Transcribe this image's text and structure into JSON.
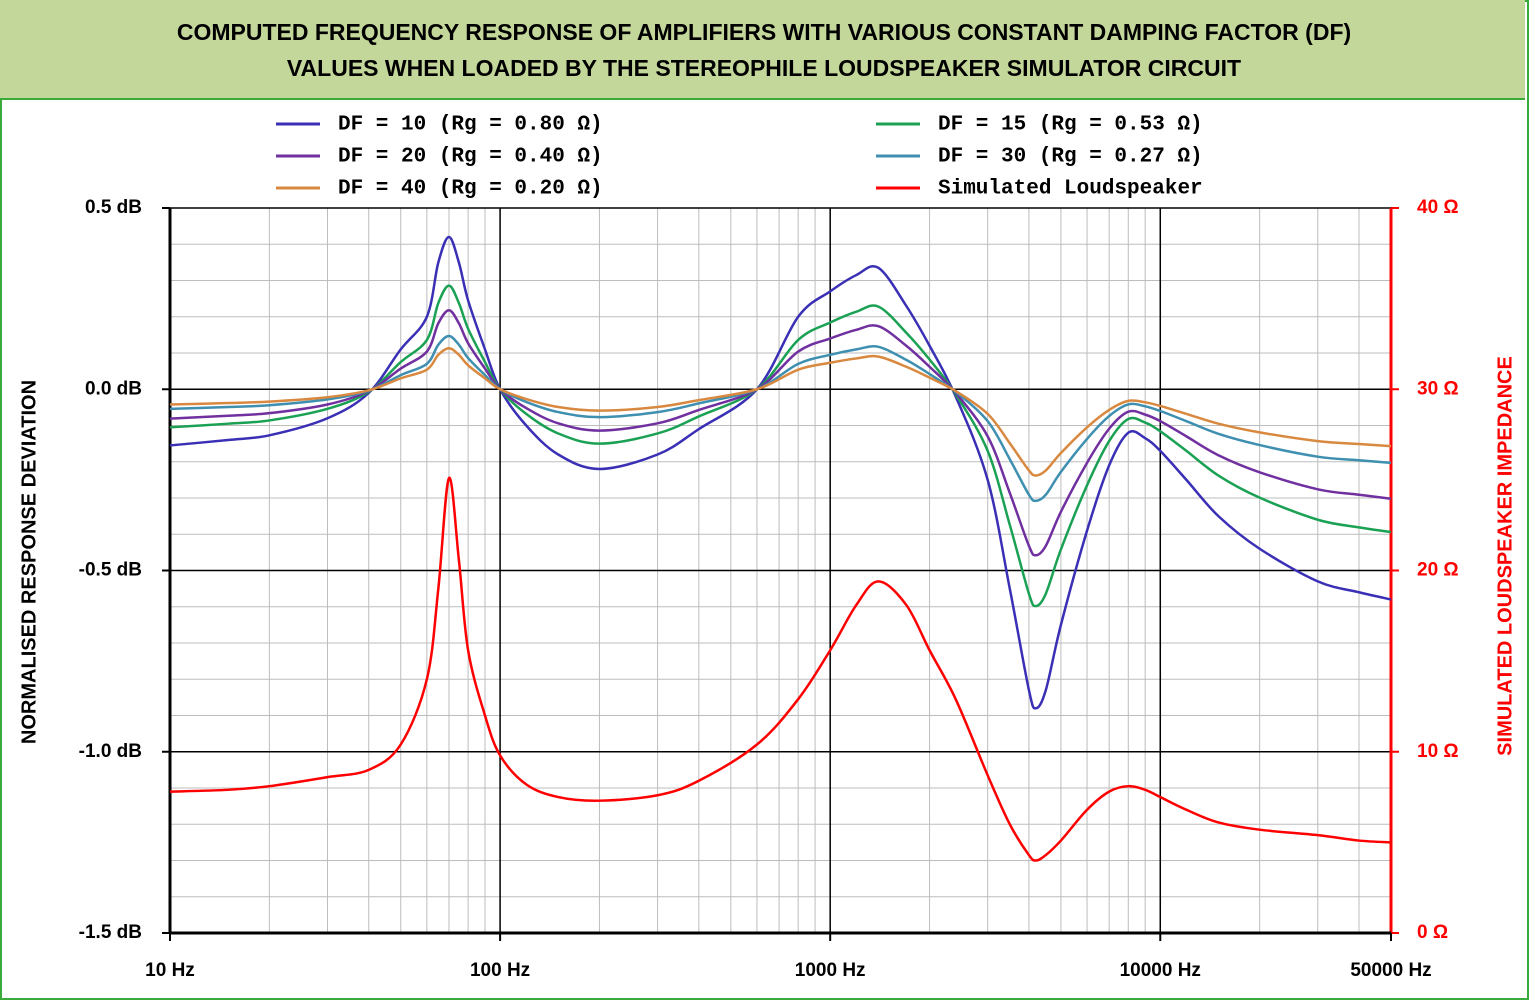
{
  "chart_data": {
    "type": "line",
    "title": [
      "COMPUTED FREQUENCY RESPONSE OF AMPLIFIERS WITH VARIOUS CONSTANT DAMPING FACTOR (DF)",
      "VALUES WHEN LOADED BY THE STEREOPHILE LOUDSPEAKER SIMULATOR CIRCUIT"
    ],
    "y_label": "NORMALISED RESPONSE DEVIATION",
    "y2_label": "SIMULATED LOUDSPEAKER IMPEDANCE",
    "log_x": true,
    "grid": true,
    "minor_grid": true,
    "legend": "top",
    "xlim": [
      10,
      50000
    ],
    "xticks": [
      {
        "value": 10,
        "label": "10 Hz"
      },
      {
        "value": 100,
        "label": "100 Hz"
      },
      {
        "value": 1000,
        "label": "1000 Hz"
      },
      {
        "value": 10000,
        "label": "10000 Hz"
      },
      {
        "value": 50000,
        "label": "50000 Hz"
      }
    ],
    "ylim": [
      -1.5,
      0.5
    ],
    "yticks": [
      {
        "value": 0.5,
        "label": "0.5 dB"
      },
      {
        "value": 0,
        "label": "0.0 dB"
      },
      {
        "value": -0.5,
        "label": "-0.5 dB"
      },
      {
        "value": -1,
        "label": "-1.0 dB"
      },
      {
        "value": -1.5,
        "label": "-1.5 dB"
      }
    ],
    "y2lim": [
      0,
      40
    ],
    "y2ticks": [
      {
        "value": 40,
        "label": "40 Ω"
      },
      {
        "value": 30,
        "label": "30 Ω"
      },
      {
        "value": 20,
        "label": "20 Ω"
      },
      {
        "value": 10,
        "label": "10 Ω"
      },
      {
        "value": 0,
        "label": "0 Ω"
      }
    ],
    "x": [
      10,
      15,
      20,
      30,
      40,
      50,
      60,
      65,
      70,
      75,
      80,
      90,
      100,
      120,
      150,
      200,
      300,
      400,
      600,
      800,
      1000,
      1200,
      1400,
      1700,
      2000,
      2400,
      3000,
      3500,
      4000,
      4200,
      4500,
      5000,
      6000,
      7000,
      8000,
      9000,
      10000,
      12000,
      15000,
      20000,
      30000,
      40000,
      50000
    ],
    "series": [
      {
        "name": "DF = 10 (Rg = 0.80 Ω)",
        "color": "#3a2fb5",
        "values": [
          -0.155,
          -0.14,
          -0.127,
          -0.08,
          -0.01,
          0.11,
          0.2,
          0.35,
          0.42,
          0.35,
          0.245,
          0.11,
          0,
          -0.1,
          -0.18,
          -0.22,
          -0.18,
          -0.11,
          0,
          0.2,
          0.27,
          0.315,
          0.335,
          0.23,
          0.12,
          -0.02,
          -0.25,
          -0.55,
          -0.83,
          -0.88,
          -0.83,
          -0.65,
          -0.39,
          -0.21,
          -0.12,
          -0.135,
          -0.17,
          -0.25,
          -0.35,
          -0.44,
          -0.53,
          -0.56,
          -0.58
        ]
      },
      {
        "name": "DF = 15 (Rg = 0.53 Ω)",
        "color": "#1ba154",
        "values": [
          -0.105,
          -0.095,
          -0.086,
          -0.054,
          -0.007,
          0.075,
          0.136,
          0.238,
          0.286,
          0.238,
          0.167,
          0.075,
          0,
          -0.068,
          -0.122,
          -0.15,
          -0.122,
          -0.075,
          0,
          0.136,
          0.184,
          0.214,
          0.228,
          0.156,
          0.082,
          -0.014,
          -0.17,
          -0.374,
          -0.564,
          -0.598,
          -0.564,
          -0.442,
          -0.265,
          -0.143,
          -0.082,
          -0.092,
          -0.116,
          -0.17,
          -0.238,
          -0.299,
          -0.36,
          -0.381,
          -0.394
        ]
      },
      {
        "name": "DF = 20 (Rg = 0.40 Ω)",
        "color": "#7030a0",
        "values": [
          -0.081,
          -0.073,
          -0.066,
          -0.042,
          -0.005,
          0.057,
          0.104,
          0.182,
          0.218,
          0.182,
          0.127,
          0.057,
          0,
          -0.052,
          -0.094,
          -0.114,
          -0.094,
          -0.057,
          0,
          0.104,
          0.14,
          0.164,
          0.174,
          0.12,
          0.062,
          -0.01,
          -0.13,
          -0.286,
          -0.432,
          -0.458,
          -0.432,
          -0.338,
          -0.203,
          -0.109,
          -0.062,
          -0.07,
          -0.088,
          -0.13,
          -0.182,
          -0.229,
          -0.276,
          -0.291,
          -0.302
        ]
      },
      {
        "name": "DF = 30 (Rg = 0.27 Ω)",
        "color": "#3e8fb0",
        "values": [
          -0.054,
          -0.049,
          -0.044,
          -0.028,
          -0.004,
          0.039,
          0.07,
          0.123,
          0.147,
          0.123,
          0.086,
          0.039,
          0,
          -0.035,
          -0.063,
          -0.077,
          -0.063,
          -0.039,
          0,
          0.07,
          0.095,
          0.11,
          0.117,
          0.081,
          0.042,
          -0.007,
          -0.088,
          -0.193,
          -0.291,
          -0.308,
          -0.291,
          -0.228,
          -0.137,
          -0.074,
          -0.042,
          -0.047,
          -0.06,
          -0.088,
          -0.123,
          -0.154,
          -0.186,
          -0.196,
          -0.203
        ]
      },
      {
        "name": "DF = 40 (Rg = 0.20 Ω)",
        "color": "#d9893f",
        "values": [
          -0.042,
          -0.038,
          -0.034,
          -0.022,
          -0.003,
          0.03,
          0.054,
          0.095,
          0.113,
          0.095,
          0.066,
          0.03,
          0,
          -0.027,
          -0.049,
          -0.059,
          -0.049,
          -0.03,
          0,
          0.054,
          0.073,
          0.085,
          0.09,
          0.062,
          0.032,
          -0.005,
          -0.068,
          -0.149,
          -0.224,
          -0.238,
          -0.224,
          -0.176,
          -0.105,
          -0.057,
          -0.032,
          -0.036,
          -0.046,
          -0.068,
          -0.095,
          -0.119,
          -0.143,
          -0.151,
          -0.157
        ]
      },
      {
        "name": "Simulated Loudspeaker",
        "color": "#ff0000",
        "axis": "y2",
        "values": [
          7.8,
          7.9,
          8.1,
          8.6,
          9.0,
          10.4,
          14,
          19,
          25.1,
          20.6,
          15.6,
          12,
          9.8,
          8.2,
          7.5,
          7.3,
          7.6,
          8.4,
          10.4,
          12.9,
          15.6,
          18.1,
          19.4,
          18.1,
          15.6,
          12.9,
          8.7,
          6.0,
          4.3,
          4.0,
          4.3,
          5.1,
          6.8,
          7.8,
          8.1,
          7.9,
          7.5,
          6.8,
          6.1,
          5.7,
          5.4,
          5.1,
          5.0
        ]
      }
    ]
  }
}
